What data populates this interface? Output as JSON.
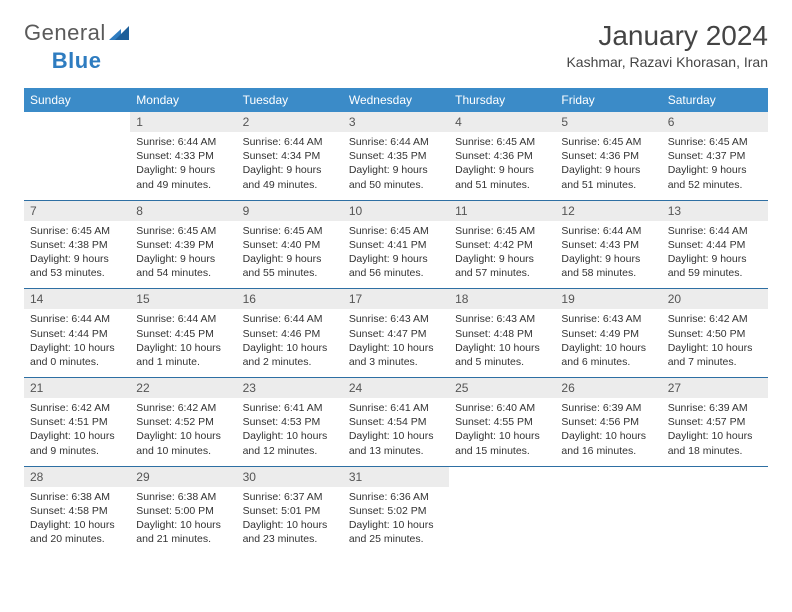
{
  "brand": {
    "part1": "General",
    "part2": "Blue",
    "logo_color": "#2e7cc0"
  },
  "title": "January 2024",
  "location": "Kashmar, Razavi Khorasan, Iran",
  "header_bg": "#3b8bc8",
  "daynum_bg": "#ececec",
  "row_border": "#2e6fa3",
  "day_headers": [
    "Sunday",
    "Monday",
    "Tuesday",
    "Wednesday",
    "Thursday",
    "Friday",
    "Saturday"
  ],
  "weeks": [
    [
      {
        "n": "",
        "sr": "",
        "ss": "",
        "dl1": "",
        "dl2": ""
      },
      {
        "n": "1",
        "sr": "Sunrise: 6:44 AM",
        "ss": "Sunset: 4:33 PM",
        "dl1": "Daylight: 9 hours",
        "dl2": "and 49 minutes."
      },
      {
        "n": "2",
        "sr": "Sunrise: 6:44 AM",
        "ss": "Sunset: 4:34 PM",
        "dl1": "Daylight: 9 hours",
        "dl2": "and 49 minutes."
      },
      {
        "n": "3",
        "sr": "Sunrise: 6:44 AM",
        "ss": "Sunset: 4:35 PM",
        "dl1": "Daylight: 9 hours",
        "dl2": "and 50 minutes."
      },
      {
        "n": "4",
        "sr": "Sunrise: 6:45 AM",
        "ss": "Sunset: 4:36 PM",
        "dl1": "Daylight: 9 hours",
        "dl2": "and 51 minutes."
      },
      {
        "n": "5",
        "sr": "Sunrise: 6:45 AM",
        "ss": "Sunset: 4:36 PM",
        "dl1": "Daylight: 9 hours",
        "dl2": "and 51 minutes."
      },
      {
        "n": "6",
        "sr": "Sunrise: 6:45 AM",
        "ss": "Sunset: 4:37 PM",
        "dl1": "Daylight: 9 hours",
        "dl2": "and 52 minutes."
      }
    ],
    [
      {
        "n": "7",
        "sr": "Sunrise: 6:45 AM",
        "ss": "Sunset: 4:38 PM",
        "dl1": "Daylight: 9 hours",
        "dl2": "and 53 minutes."
      },
      {
        "n": "8",
        "sr": "Sunrise: 6:45 AM",
        "ss": "Sunset: 4:39 PM",
        "dl1": "Daylight: 9 hours",
        "dl2": "and 54 minutes."
      },
      {
        "n": "9",
        "sr": "Sunrise: 6:45 AM",
        "ss": "Sunset: 4:40 PM",
        "dl1": "Daylight: 9 hours",
        "dl2": "and 55 minutes."
      },
      {
        "n": "10",
        "sr": "Sunrise: 6:45 AM",
        "ss": "Sunset: 4:41 PM",
        "dl1": "Daylight: 9 hours",
        "dl2": "and 56 minutes."
      },
      {
        "n": "11",
        "sr": "Sunrise: 6:45 AM",
        "ss": "Sunset: 4:42 PM",
        "dl1": "Daylight: 9 hours",
        "dl2": "and 57 minutes."
      },
      {
        "n": "12",
        "sr": "Sunrise: 6:44 AM",
        "ss": "Sunset: 4:43 PM",
        "dl1": "Daylight: 9 hours",
        "dl2": "and 58 minutes."
      },
      {
        "n": "13",
        "sr": "Sunrise: 6:44 AM",
        "ss": "Sunset: 4:44 PM",
        "dl1": "Daylight: 9 hours",
        "dl2": "and 59 minutes."
      }
    ],
    [
      {
        "n": "14",
        "sr": "Sunrise: 6:44 AM",
        "ss": "Sunset: 4:44 PM",
        "dl1": "Daylight: 10 hours",
        "dl2": "and 0 minutes."
      },
      {
        "n": "15",
        "sr": "Sunrise: 6:44 AM",
        "ss": "Sunset: 4:45 PM",
        "dl1": "Daylight: 10 hours",
        "dl2": "and 1 minute."
      },
      {
        "n": "16",
        "sr": "Sunrise: 6:44 AM",
        "ss": "Sunset: 4:46 PM",
        "dl1": "Daylight: 10 hours",
        "dl2": "and 2 minutes."
      },
      {
        "n": "17",
        "sr": "Sunrise: 6:43 AM",
        "ss": "Sunset: 4:47 PM",
        "dl1": "Daylight: 10 hours",
        "dl2": "and 3 minutes."
      },
      {
        "n": "18",
        "sr": "Sunrise: 6:43 AM",
        "ss": "Sunset: 4:48 PM",
        "dl1": "Daylight: 10 hours",
        "dl2": "and 5 minutes."
      },
      {
        "n": "19",
        "sr": "Sunrise: 6:43 AM",
        "ss": "Sunset: 4:49 PM",
        "dl1": "Daylight: 10 hours",
        "dl2": "and 6 minutes."
      },
      {
        "n": "20",
        "sr": "Sunrise: 6:42 AM",
        "ss": "Sunset: 4:50 PM",
        "dl1": "Daylight: 10 hours",
        "dl2": "and 7 minutes."
      }
    ],
    [
      {
        "n": "21",
        "sr": "Sunrise: 6:42 AM",
        "ss": "Sunset: 4:51 PM",
        "dl1": "Daylight: 10 hours",
        "dl2": "and 9 minutes."
      },
      {
        "n": "22",
        "sr": "Sunrise: 6:42 AM",
        "ss": "Sunset: 4:52 PM",
        "dl1": "Daylight: 10 hours",
        "dl2": "and 10 minutes."
      },
      {
        "n": "23",
        "sr": "Sunrise: 6:41 AM",
        "ss": "Sunset: 4:53 PM",
        "dl1": "Daylight: 10 hours",
        "dl2": "and 12 minutes."
      },
      {
        "n": "24",
        "sr": "Sunrise: 6:41 AM",
        "ss": "Sunset: 4:54 PM",
        "dl1": "Daylight: 10 hours",
        "dl2": "and 13 minutes."
      },
      {
        "n": "25",
        "sr": "Sunrise: 6:40 AM",
        "ss": "Sunset: 4:55 PM",
        "dl1": "Daylight: 10 hours",
        "dl2": "and 15 minutes."
      },
      {
        "n": "26",
        "sr": "Sunrise: 6:39 AM",
        "ss": "Sunset: 4:56 PM",
        "dl1": "Daylight: 10 hours",
        "dl2": "and 16 minutes."
      },
      {
        "n": "27",
        "sr": "Sunrise: 6:39 AM",
        "ss": "Sunset: 4:57 PM",
        "dl1": "Daylight: 10 hours",
        "dl2": "and 18 minutes."
      }
    ],
    [
      {
        "n": "28",
        "sr": "Sunrise: 6:38 AM",
        "ss": "Sunset: 4:58 PM",
        "dl1": "Daylight: 10 hours",
        "dl2": "and 20 minutes."
      },
      {
        "n": "29",
        "sr": "Sunrise: 6:38 AM",
        "ss": "Sunset: 5:00 PM",
        "dl1": "Daylight: 10 hours",
        "dl2": "and 21 minutes."
      },
      {
        "n": "30",
        "sr": "Sunrise: 6:37 AM",
        "ss": "Sunset: 5:01 PM",
        "dl1": "Daylight: 10 hours",
        "dl2": "and 23 minutes."
      },
      {
        "n": "31",
        "sr": "Sunrise: 6:36 AM",
        "ss": "Sunset: 5:02 PM",
        "dl1": "Daylight: 10 hours",
        "dl2": "and 25 minutes."
      },
      {
        "n": "",
        "sr": "",
        "ss": "",
        "dl1": "",
        "dl2": ""
      },
      {
        "n": "",
        "sr": "",
        "ss": "",
        "dl1": "",
        "dl2": ""
      },
      {
        "n": "",
        "sr": "",
        "ss": "",
        "dl1": "",
        "dl2": ""
      }
    ]
  ]
}
